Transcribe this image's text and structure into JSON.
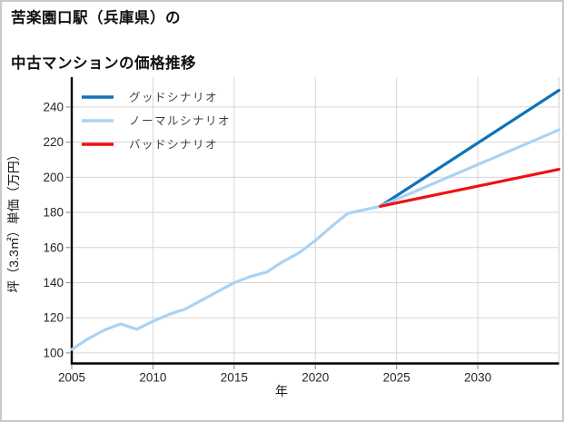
{
  "header": {
    "title_line1": "苦楽園口駅（兵庫県）の",
    "title_line2": "中古マンションの価格推移"
  },
  "chart_data": {
    "type": "line",
    "title": "苦楽園口駅（兵庫県）の中古マンションの価格推移",
    "xlabel": "年",
    "ylabel": "坪（3.3㎡）単価（万円）",
    "xlim": [
      2005,
      2035
    ],
    "ylim": [
      94,
      257
    ],
    "xticks": [
      2005,
      2010,
      2015,
      2020,
      2025,
      2030
    ],
    "yticks": [
      100,
      120,
      140,
      160,
      180,
      200,
      220,
      240
    ],
    "grid": true,
    "legend_position": "upper-left",
    "colors": {
      "good": "#0e72b9",
      "normal": "#a9d3f5",
      "bad": "#ee1111",
      "grid": "#d6d6d6",
      "spine": "#000000",
      "tick": "#999999"
    },
    "history": {
      "color": "#a9d3f5",
      "x": [
        2005,
        2006,
        2007,
        2008,
        2009,
        2010,
        2011,
        2012,
        2013,
        2014,
        2015,
        2016,
        2017,
        2018,
        2019,
        2020,
        2021,
        2022,
        2023,
        2024
      ],
      "y": [
        102,
        108,
        113,
        116.5,
        113.5,
        118,
        122,
        125,
        130,
        135,
        140,
        143.5,
        146,
        152,
        157,
        164,
        172,
        179.5,
        181.5,
        183.5
      ]
    },
    "scenarios": [
      {
        "key": "good",
        "name": "グッドシナリオ",
        "color": "#0e72b9",
        "x": [
          2024,
          2035
        ],
        "y": [
          183.5,
          249.5
        ]
      },
      {
        "key": "normal",
        "name": "ノーマルシナリオ",
        "color": "#a9d3f5",
        "x": [
          2024,
          2035
        ],
        "y": [
          183.5,
          227
        ]
      },
      {
        "key": "bad",
        "name": "バッドシナリオ",
        "color": "#ee1111",
        "x": [
          2024,
          2035
        ],
        "y": [
          183.5,
          204.5
        ]
      }
    ]
  }
}
